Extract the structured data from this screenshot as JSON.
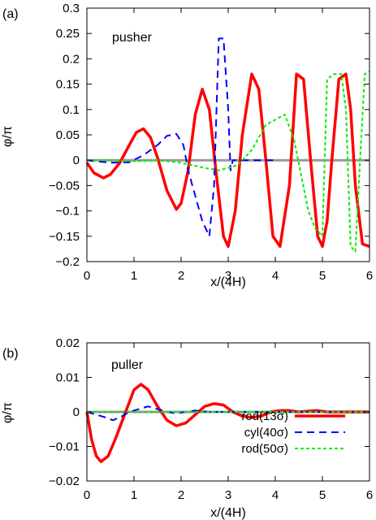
{
  "chart_data": [
    {
      "type": "line",
      "panel_label": "(a)",
      "annotation": "pusher",
      "xlabel": "x/(4H)",
      "ylabel": "φ/π",
      "xlim": [
        0,
        6
      ],
      "ylim": [
        -0.2,
        0.3
      ],
      "xticks": [
        "0",
        "1",
        "2",
        "3",
        "4",
        "5",
        "6"
      ],
      "yticks": [
        "−0.2",
        "−0.15",
        "−0.1",
        "−0.05",
        "0",
        "0.05",
        "0.1",
        "0.15",
        "0.2",
        "0.25",
        "0.3"
      ],
      "series": [
        {
          "name": "rod(13σ)",
          "color": "#ff0000",
          "style": "solid",
          "x": [
            0,
            0.15,
            0.35,
            0.5,
            0.7,
            0.9,
            1.05,
            1.2,
            1.35,
            1.5,
            1.7,
            1.9,
            2.0,
            2.15,
            2.3,
            2.45,
            2.6,
            2.75,
            2.9,
            3.0,
            3.15,
            3.3,
            3.5,
            3.65,
            3.8,
            3.95,
            4.1,
            4.3,
            4.45,
            4.6,
            4.75,
            4.9,
            5.0,
            5.1,
            5.2,
            5.35,
            5.5,
            5.6,
            5.7,
            5.85,
            6.0
          ],
          "y": [
            -0.005,
            -0.025,
            -0.035,
            -0.028,
            -0.005,
            0.03,
            0.055,
            0.062,
            0.045,
            0.005,
            -0.06,
            -0.097,
            -0.085,
            -0.02,
            0.09,
            0.14,
            0.1,
            -0.03,
            -0.15,
            -0.17,
            -0.1,
            0.05,
            0.17,
            0.14,
            0.0,
            -0.15,
            -0.17,
            -0.05,
            0.17,
            0.16,
            0.0,
            -0.15,
            -0.17,
            -0.12,
            0.0,
            0.16,
            0.17,
            0.1,
            -0.05,
            -0.165,
            -0.17
          ]
        },
        {
          "name": "cyl(40σ)",
          "color": "#0000ff",
          "style": "dashed",
          "x": [
            0,
            0.5,
            0.9,
            1.2,
            1.5,
            1.7,
            1.9,
            2.05,
            2.15,
            2.3,
            2.45,
            2.6,
            2.7,
            2.8,
            2.9,
            3.0,
            3.05,
            3.1,
            3.2,
            3.5,
            4.0
          ],
          "y": [
            0.0,
            -0.005,
            -0.004,
            0.01,
            0.03,
            0.048,
            0.052,
            0.03,
            -0.02,
            -0.07,
            -0.12,
            -0.15,
            -0.05,
            0.24,
            0.24,
            0.1,
            -0.02,
            0.0,
            0.0,
            0.0,
            0.0
          ]
        },
        {
          "name": "rod(50σ)",
          "color": "#00ee00",
          "style": "dotted",
          "x": [
            0,
            0.5,
            1.0,
            1.5,
            2.0,
            2.5,
            2.8,
            3.0,
            3.2,
            3.5,
            3.8,
            4.0,
            4.2,
            4.4,
            4.7,
            4.85,
            5.0,
            5.1,
            5.25,
            5.4,
            5.5,
            5.6,
            5.7,
            5.8,
            5.9,
            6.0
          ],
          "y": [
            0.0,
            0.0,
            -0.002,
            0.0,
            -0.005,
            -0.015,
            -0.02,
            -0.015,
            -0.01,
            0.02,
            0.07,
            0.08,
            0.09,
            0.04,
            -0.1,
            -0.135,
            -0.15,
            0.16,
            0.17,
            0.17,
            0.1,
            -0.17,
            -0.18,
            0.0,
            0.17,
            0.175
          ]
        }
      ]
    },
    {
      "type": "line",
      "panel_label": "(b)",
      "annotation": "puller",
      "xlabel": "x/(4H)",
      "ylabel": "φ/π",
      "xlim": [
        0,
        6
      ],
      "ylim": [
        -0.025,
        0.025
      ],
      "xticks": [
        "0",
        "1",
        "2",
        "3",
        "4",
        "5",
        "6"
      ],
      "yticks": [
        "−0.02",
        "−0.01",
        "0",
        "0.01",
        "0.02"
      ],
      "series": [
        {
          "name": "rod(13σ)",
          "color": "#ff0000",
          "style": "solid",
          "x": [
            0,
            0.1,
            0.2,
            0.3,
            0.45,
            0.6,
            0.8,
            1.0,
            1.15,
            1.3,
            1.5,
            1.7,
            1.9,
            2.1,
            2.3,
            2.5,
            2.7,
            2.9,
            3.1,
            3.3,
            3.5,
            3.7,
            3.9,
            4.1,
            4.3,
            4.5,
            4.7,
            4.9,
            5.1,
            5.3,
            5.5,
            6.0
          ],
          "y": [
            0.0,
            -0.01,
            -0.016,
            -0.018,
            -0.016,
            -0.01,
            -0.001,
            0.008,
            0.01,
            0.008,
            0.002,
            -0.003,
            -0.005,
            -0.004,
            -0.001,
            0.002,
            0.003,
            0.0025,
            0.0,
            -0.0015,
            -0.002,
            -0.0015,
            0.0,
            0.0005,
            0.0005,
            0.0,
            0.0003,
            0.0005,
            0.0,
            0.0,
            0.0,
            0.0
          ]
        },
        {
          "name": "cyl(40σ)",
          "color": "#0000ff",
          "style": "dashed",
          "x": [
            0,
            0.2,
            0.4,
            0.55,
            0.7,
            0.9,
            1.1,
            1.3,
            1.5,
            1.7,
            1.9,
            2.1,
            2.3,
            2.6,
            3.0,
            4.0,
            6.0
          ],
          "y": [
            0.0,
            -0.001,
            -0.002,
            -0.003,
            -0.002,
            0.0,
            0.001,
            0.002,
            0.001,
            0.0,
            -0.0005,
            0.0,
            0.0005,
            0.0,
            0.0,
            0.0,
            0.0
          ]
        },
        {
          "name": "rod(50σ)",
          "color": "#00ee00",
          "style": "dotted",
          "x": [
            0,
            1.0,
            2.0,
            3.0,
            4.0,
            5.0,
            6.0
          ],
          "y": [
            0.0,
            0.0,
            0.0,
            0.0,
            0.0,
            0.0,
            0.0
          ]
        }
      ],
      "legend": [
        "rod(13σ)",
        "cyl(40σ)",
        "rod(50σ)"
      ]
    }
  ]
}
